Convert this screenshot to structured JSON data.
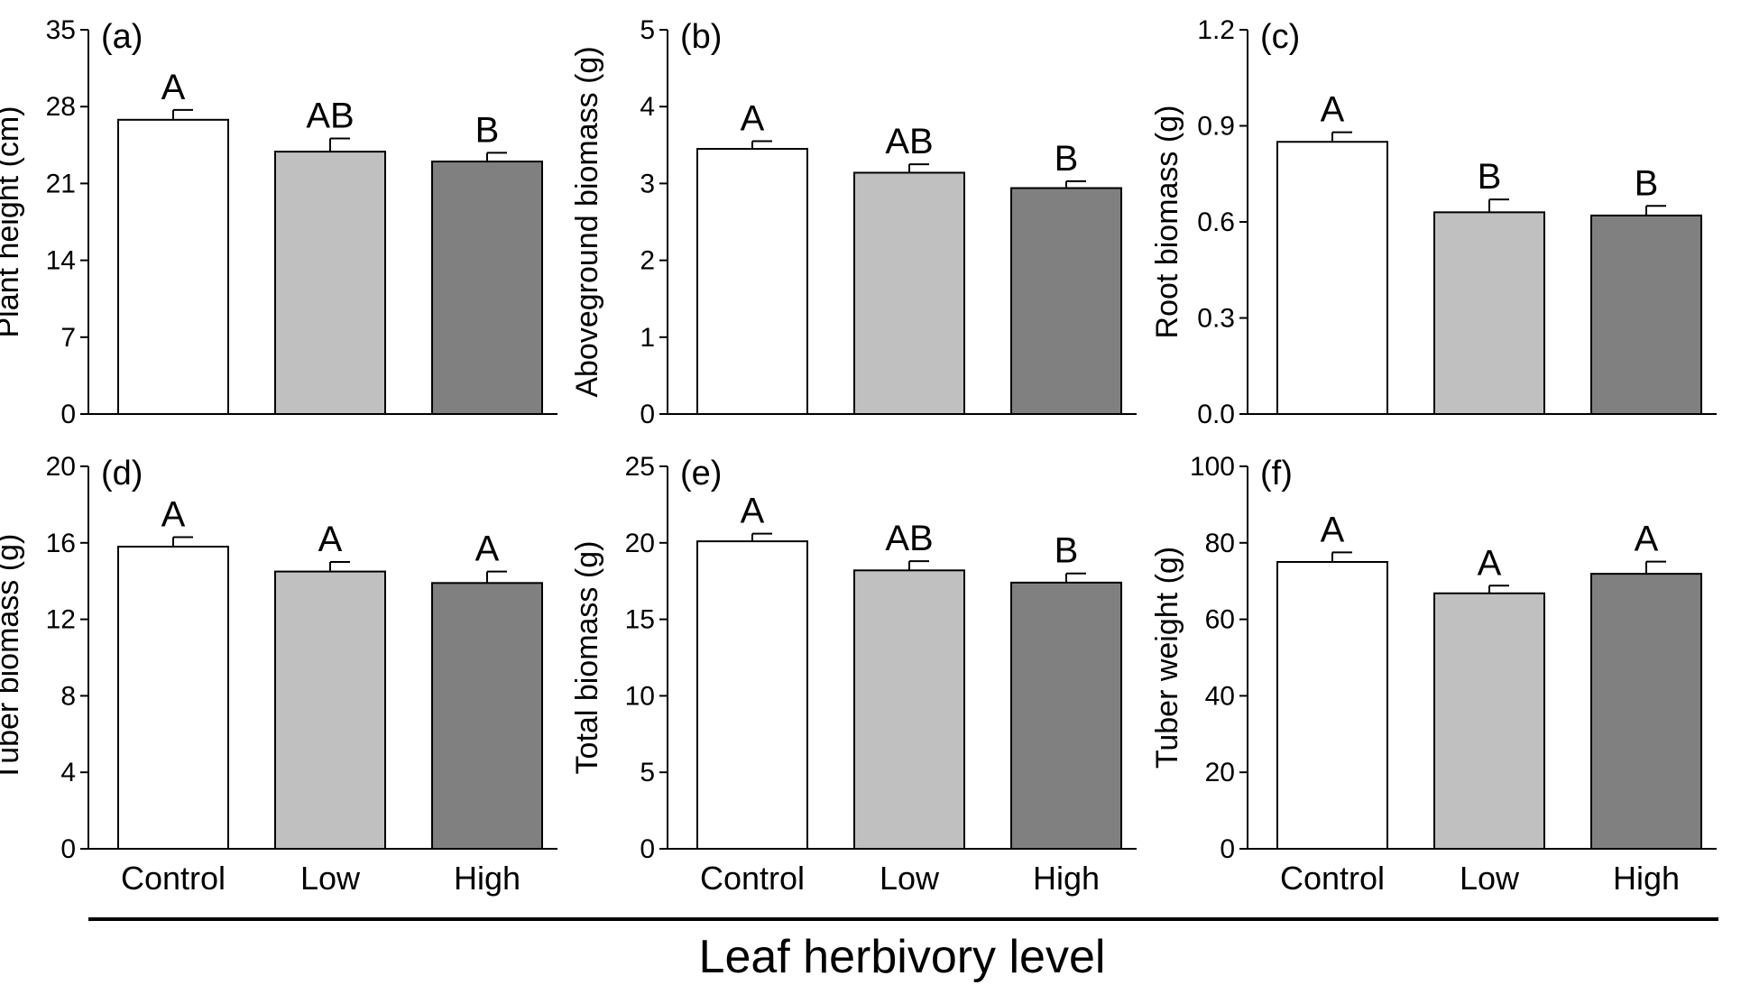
{
  "figure": {
    "x_title": "Leaf herbivory level"
  },
  "colors": {
    "Control": "#ffffff",
    "Low": "#c0c0c0",
    "High": "#808080",
    "stroke": "#000000"
  },
  "chart_data": [
    {
      "type": "bar",
      "panel": "(a)",
      "ylabel": "Plant height (cm)",
      "categories": [
        "Control",
        "Low",
        "High"
      ],
      "values": [
        26.8,
        23.9,
        23.0
      ],
      "errors": [
        0.9,
        1.2,
        0.8
      ],
      "letters": [
        "A",
        "AB",
        "B"
      ],
      "ylim": [
        0,
        35
      ],
      "yticks": [
        0,
        7,
        14,
        21,
        28,
        35
      ],
      "ytick_labels": [
        "0",
        "7",
        "14",
        "21",
        "28",
        "35"
      ]
    },
    {
      "type": "bar",
      "panel": "(b)",
      "ylabel": "Aboveground biomass (g)",
      "categories": [
        "Control",
        "Low",
        "High"
      ],
      "values": [
        3.45,
        3.14,
        2.94
      ],
      "errors": [
        0.1,
        0.11,
        0.09
      ],
      "letters": [
        "A",
        "AB",
        "B"
      ],
      "ylim": [
        0,
        5
      ],
      "yticks": [
        0,
        1,
        2,
        3,
        4,
        5
      ],
      "ytick_labels": [
        "0",
        "1",
        "2",
        "3",
        "4",
        "5"
      ]
    },
    {
      "type": "bar",
      "panel": "(c)",
      "ylabel": "Root biomass (g)",
      "categories": [
        "Control",
        "Low",
        "High"
      ],
      "values": [
        0.85,
        0.63,
        0.62
      ],
      "errors": [
        0.03,
        0.04,
        0.03
      ],
      "letters": [
        "A",
        "B",
        "B"
      ],
      "ylim": [
        0,
        1.2
      ],
      "yticks": [
        0,
        0.3,
        0.6,
        0.9,
        1.2
      ],
      "ytick_labels": [
        "0.0",
        "0.3",
        "0.6",
        "0.9",
        "1.2"
      ]
    },
    {
      "type": "bar",
      "panel": "(d)",
      "ylabel": "Tuber biomass (g)",
      "categories": [
        "Control",
        "Low",
        "High"
      ],
      "values": [
        15.8,
        14.5,
        13.9
      ],
      "errors": [
        0.5,
        0.5,
        0.6
      ],
      "letters": [
        "A",
        "A",
        "A"
      ],
      "ylim": [
        0,
        20
      ],
      "yticks": [
        0,
        4,
        8,
        12,
        16,
        20
      ],
      "ytick_labels": [
        "0",
        "4",
        "8",
        "12",
        "16",
        "20"
      ]
    },
    {
      "type": "bar",
      "panel": "(e)",
      "ylabel": "Total biomass (g)",
      "categories": [
        "Control",
        "Low",
        "High"
      ],
      "values": [
        20.1,
        18.2,
        17.4
      ],
      "errors": [
        0.5,
        0.6,
        0.6
      ],
      "letters": [
        "A",
        "AB",
        "B"
      ],
      "ylim": [
        0,
        25
      ],
      "yticks": [
        0,
        5,
        10,
        15,
        20,
        25
      ],
      "ytick_labels": [
        "0",
        "5",
        "10",
        "15",
        "20",
        "25"
      ]
    },
    {
      "type": "bar",
      "panel": "(f)",
      "ylabel": "Tuber weight (g)",
      "categories": [
        "Control",
        "Low",
        "High"
      ],
      "values": [
        75,
        66.8,
        71.9
      ],
      "errors": [
        2.5,
        2.0,
        3.2
      ],
      "letters": [
        "A",
        "A",
        "A"
      ],
      "ylim": [
        0,
        100
      ],
      "yticks": [
        0,
        20,
        40,
        60,
        80,
        100
      ],
      "ytick_labels": [
        "0",
        "20",
        "40",
        "60",
        "80",
        "100"
      ]
    }
  ]
}
